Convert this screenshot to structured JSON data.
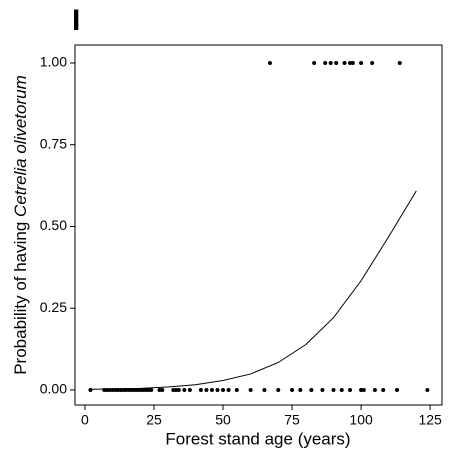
{
  "chart_data": {
    "type": "scatter",
    "title": "I",
    "x_label": "Forest stand age (years)",
    "y_label": "Probability of having",
    "y_label_species": "Cetrelia olivetorum",
    "xlim": [
      -3.6,
      129.3
    ],
    "ylim": [
      -0.046,
      1.055
    ],
    "xticks": [
      0,
      25,
      50,
      75,
      100,
      125
    ],
    "yticks": [
      {
        "value": 0,
        "label": "0.00"
      },
      {
        "value": 0.25,
        "label": "0.25"
      },
      {
        "value": 0.5,
        "label": "0.50"
      },
      {
        "value": 0.75,
        "label": "0.75"
      },
      {
        "value": 1,
        "label": "1.00"
      }
    ],
    "grid": false,
    "points": {
      "color": "#000000",
      "x": [
        67,
        83,
        87,
        89,
        91,
        94,
        96,
        97,
        100,
        104,
        114,
        2,
        7,
        8,
        9,
        10,
        11,
        12,
        13,
        14,
        15,
        16,
        17,
        18,
        19,
        20,
        21,
        22,
        23,
        24,
        27,
        28,
        32,
        33,
        34,
        36,
        38,
        42,
        44,
        46,
        48,
        50,
        52,
        55,
        60,
        65,
        70,
        75,
        78,
        82,
        86,
        90,
        93,
        96,
        100,
        101,
        105,
        108,
        113,
        124
      ],
      "values": [
        1,
        1,
        1,
        1,
        1,
        1,
        1,
        1,
        1,
        1,
        1,
        0,
        0,
        0,
        0,
        0,
        0,
        0,
        0,
        0,
        0,
        0,
        0,
        0,
        0,
        0,
        0,
        0,
        0,
        0,
        0,
        0,
        0,
        0,
        0,
        0,
        0,
        0,
        0,
        0,
        0,
        0,
        0,
        0,
        0,
        0,
        0,
        0,
        0,
        0,
        0,
        0,
        0,
        0,
        0,
        0,
        0,
        0,
        0,
        0
      ]
    },
    "curve": {
      "color": "#000000",
      "x": [
        2,
        10,
        20,
        30,
        40,
        50,
        60,
        70,
        80,
        90,
        100,
        110,
        120
      ],
      "values": [
        0.002,
        0.003,
        0.005,
        0.009,
        0.016,
        0.029,
        0.049,
        0.084,
        0.139,
        0.221,
        0.334,
        0.469,
        0.609
      ]
    }
  }
}
